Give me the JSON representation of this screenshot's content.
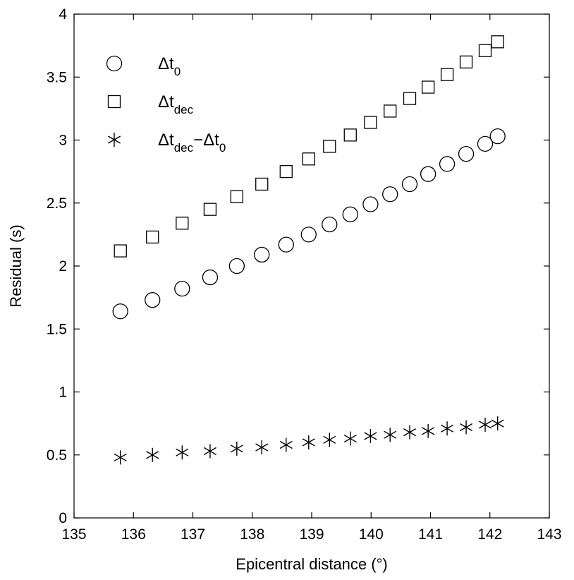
{
  "chart_data": {
    "type": "scatter",
    "xlabel": "Epicentral distance (°)",
    "ylabel": "Residual (s)",
    "xlim": [
      135,
      143
    ],
    "ylim": [
      0,
      4
    ],
    "xticks": [
      "135",
      "136",
      "137",
      "138",
      "139",
      "140",
      "141",
      "142",
      "143"
    ],
    "yticks": [
      "0",
      "0.5",
      "1",
      "1.5",
      "2",
      "2.5",
      "3",
      "3.5",
      "4"
    ],
    "grid": false,
    "legend_placement": "top-left",
    "x": [
      135.78,
      136.32,
      136.82,
      137.29,
      137.74,
      138.16,
      138.57,
      138.95,
      139.3,
      139.65,
      139.99,
      140.32,
      140.65,
      140.96,
      141.28,
      141.6,
      141.92,
      142.13
    ],
    "series": [
      {
        "marker": "circle",
        "legend_main": "Δt",
        "legend_sub": "0",
        "values": [
          1.64,
          1.73,
          1.82,
          1.91,
          2.0,
          2.09,
          2.17,
          2.25,
          2.33,
          2.41,
          2.49,
          2.57,
          2.65,
          2.73,
          2.81,
          2.89,
          2.97,
          3.03
        ]
      },
      {
        "marker": "square",
        "legend_main": "Δt",
        "legend_sub": "dec",
        "values": [
          2.12,
          2.23,
          2.34,
          2.45,
          2.55,
          2.65,
          2.75,
          2.85,
          2.95,
          3.04,
          3.14,
          3.23,
          3.33,
          3.42,
          3.52,
          3.62,
          3.71,
          3.78
        ]
      },
      {
        "marker": "star",
        "legend_main": "Δt",
        "legend_sub": "dec",
        "legend_main2": "−Δt",
        "legend_sub2": "0",
        "values": [
          0.48,
          0.5,
          0.52,
          0.53,
          0.55,
          0.56,
          0.58,
          0.6,
          0.62,
          0.63,
          0.65,
          0.66,
          0.68,
          0.69,
          0.71,
          0.72,
          0.74,
          0.75
        ]
      }
    ]
  }
}
